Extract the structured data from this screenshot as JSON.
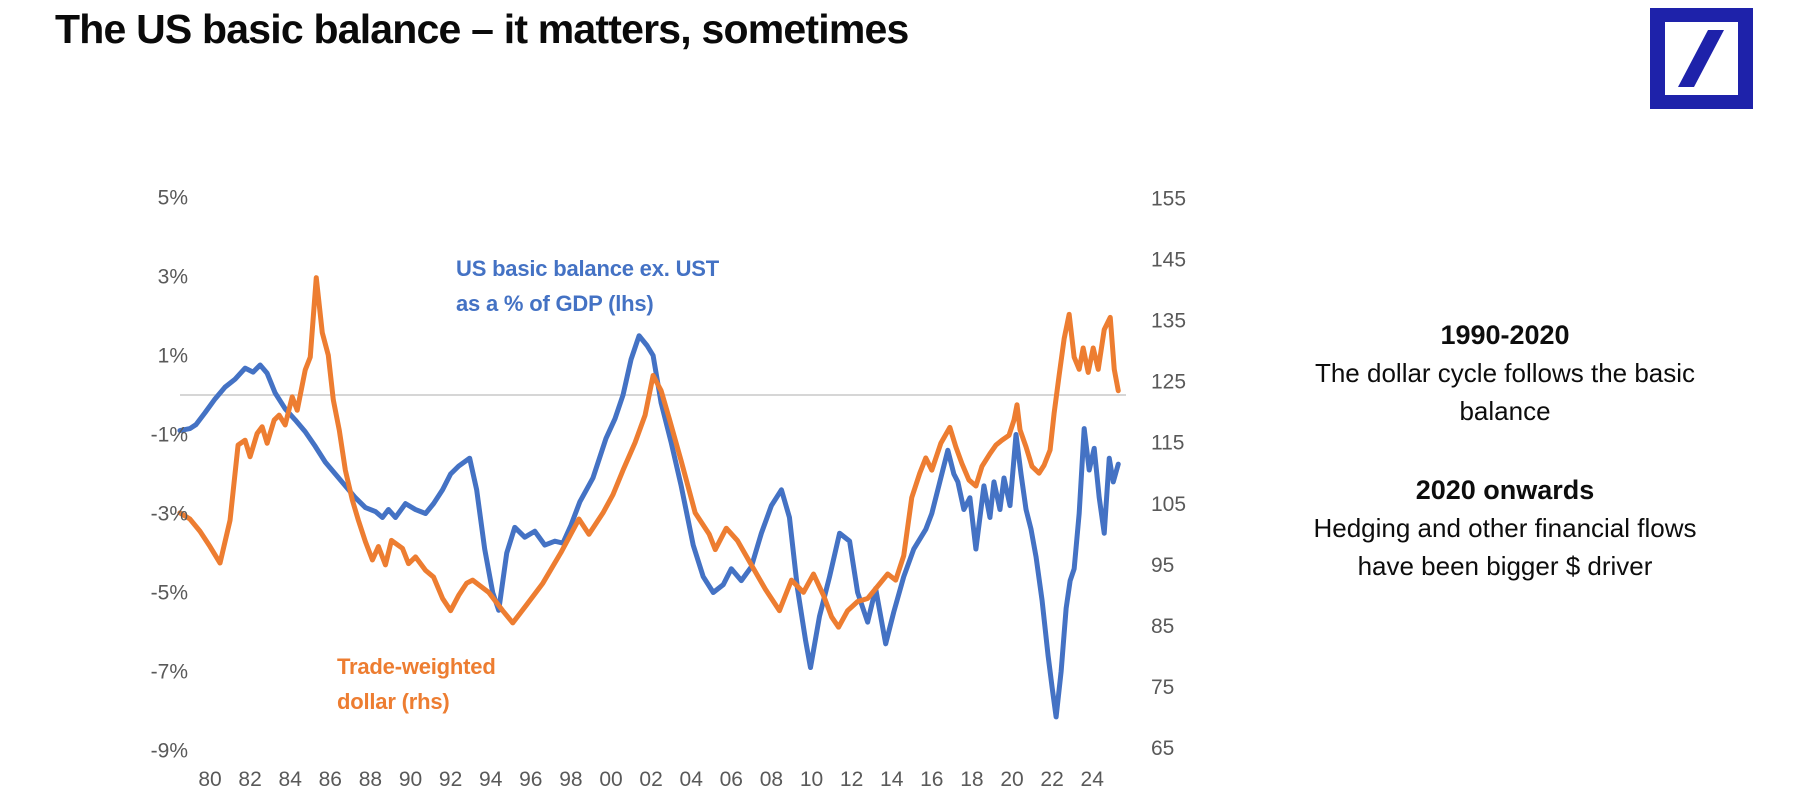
{
  "title": "The US basic balance – it matters, sometimes",
  "logo": {
    "label": "Deutsche Bank",
    "color": "#1E22AA"
  },
  "series_labels": {
    "basic_balance": {
      "line1": "US basic balance ex. UST",
      "line2": "as a % of GDP (lhs)"
    },
    "dollar": {
      "line1": "Trade-weighted",
      "line2": "dollar (rhs)"
    }
  },
  "annotations": [
    {
      "heading": "1990-2020",
      "body": "The dollar cycle follows the basic balance"
    },
    {
      "heading": "2020 onwards",
      "body": "Hedging and other financial flows have been bigger $ driver"
    }
  ],
  "chart_data": {
    "type": "line",
    "grid": "single zero gridline only",
    "legend_position": "labels placed inside plot next to lines",
    "zero_line_color": "#c9c9c9",
    "axis_text_color": "#595959",
    "left_axis": {
      "range": [
        -9,
        5
      ],
      "ticks": [
        {
          "label": "5%",
          "v": 5
        },
        {
          "label": "3%",
          "v": 3
        },
        {
          "label": "1%",
          "v": 1
        },
        {
          "label": "-1%",
          "v": -1
        },
        {
          "label": "-3%",
          "v": -3
        },
        {
          "label": "-5%",
          "v": -5
        },
        {
          "label": "-7%",
          "v": -7
        },
        {
          "label": "-9%",
          "v": -9
        }
      ]
    },
    "right_axis": {
      "range": [
        65,
        155
      ],
      "ticks": [
        {
          "label": "155",
          "v": 155
        },
        {
          "label": "145",
          "v": 145
        },
        {
          "label": "135",
          "v": 135
        },
        {
          "label": "125",
          "v": 125
        },
        {
          "label": "115",
          "v": 115
        },
        {
          "label": "105",
          "v": 105
        },
        {
          "label": "95",
          "v": 95
        },
        {
          "label": "85",
          "v": 85
        },
        {
          "label": "75",
          "v": 75
        },
        {
          "label": "65",
          "v": 65
        }
      ]
    },
    "x_axis": {
      "range_years": [
        1978.5,
        2025.4
      ],
      "ticks": [
        {
          "label": "80",
          "year": 1980
        },
        {
          "label": "82",
          "year": 1982
        },
        {
          "label": "84",
          "year": 1984
        },
        {
          "label": "86",
          "year": 1986
        },
        {
          "label": "88",
          "year": 1988
        },
        {
          "label": "90",
          "year": 1990
        },
        {
          "label": "92",
          "year": 1992
        },
        {
          "label": "94",
          "year": 1994
        },
        {
          "label": "96",
          "year": 1996
        },
        {
          "label": "98",
          "year": 1998
        },
        {
          "label": "00",
          "year": 2000
        },
        {
          "label": "02",
          "year": 2002
        },
        {
          "label": "04",
          "year": 2004
        },
        {
          "label": "06",
          "year": 2006
        },
        {
          "label": "08",
          "year": 2008
        },
        {
          "label": "10",
          "year": 2010
        },
        {
          "label": "12",
          "year": 2012
        },
        {
          "label": "14",
          "year": 2014
        },
        {
          "label": "16",
          "year": 2016
        },
        {
          "label": "18",
          "year": 2018
        },
        {
          "label": "20",
          "year": 2020
        },
        {
          "label": "22",
          "year": 2022
        },
        {
          "label": "24",
          "year": 2024
        }
      ]
    },
    "series": [
      {
        "name": "US basic balance ex. UST as a % of GDP (lhs)",
        "axis": "left",
        "color": "#4472C4",
        "unit": "% of GDP",
        "points": [
          [
            1978.5,
            -0.9
          ],
          [
            1979.0,
            -0.85
          ],
          [
            1979.3,
            -0.75
          ],
          [
            1979.75,
            -0.45
          ],
          [
            1980.25,
            -0.1
          ],
          [
            1980.75,
            0.2
          ],
          [
            1981.25,
            0.4
          ],
          [
            1981.75,
            0.68
          ],
          [
            1982.15,
            0.58
          ],
          [
            1982.5,
            0.76
          ],
          [
            1982.85,
            0.55
          ],
          [
            1983.25,
            0.05
          ],
          [
            1983.75,
            -0.35
          ],
          [
            1984.25,
            -0.63
          ],
          [
            1984.75,
            -0.93
          ],
          [
            1985.25,
            -1.3
          ],
          [
            1985.75,
            -1.7
          ],
          [
            1986.25,
            -2.0
          ],
          [
            1986.75,
            -2.3
          ],
          [
            1987.25,
            -2.6
          ],
          [
            1987.75,
            -2.85
          ],
          [
            1988.25,
            -2.95
          ],
          [
            1988.6,
            -3.1
          ],
          [
            1988.9,
            -2.9
          ],
          [
            1989.25,
            -3.1
          ],
          [
            1989.75,
            -2.75
          ],
          [
            1990.25,
            -2.9
          ],
          [
            1990.75,
            -3.0
          ],
          [
            1991.15,
            -2.75
          ],
          [
            1991.6,
            -2.4
          ],
          [
            1992.0,
            -2.0
          ],
          [
            1992.4,
            -1.8
          ],
          [
            1992.95,
            -1.6
          ],
          [
            1993.3,
            -2.4
          ],
          [
            1993.7,
            -3.9
          ],
          [
            1994.1,
            -5.0
          ],
          [
            1994.4,
            -5.45
          ],
          [
            1994.8,
            -4.0
          ],
          [
            1995.2,
            -3.35
          ],
          [
            1995.7,
            -3.6
          ],
          [
            1996.2,
            -3.45
          ],
          [
            1996.7,
            -3.8
          ],
          [
            1997.2,
            -3.7
          ],
          [
            1997.6,
            -3.75
          ],
          [
            1998.0,
            -3.3
          ],
          [
            1998.45,
            -2.7
          ],
          [
            1999.1,
            -2.1
          ],
          [
            1999.75,
            -1.1
          ],
          [
            2000.2,
            -0.6
          ],
          [
            2000.6,
            0.0
          ],
          [
            2001.0,
            0.9
          ],
          [
            2001.4,
            1.5
          ],
          [
            2001.8,
            1.25
          ],
          [
            2002.1,
            1.0
          ],
          [
            2002.5,
            -0.2
          ],
          [
            2003.0,
            -1.2
          ],
          [
            2003.5,
            -2.3
          ],
          [
            2004.1,
            -3.8
          ],
          [
            2004.6,
            -4.6
          ],
          [
            2005.1,
            -5.0
          ],
          [
            2005.6,
            -4.8
          ],
          [
            2006.0,
            -4.4
          ],
          [
            2006.5,
            -4.7
          ],
          [
            2007.0,
            -4.35
          ],
          [
            2007.5,
            -3.5
          ],
          [
            2008.0,
            -2.8
          ],
          [
            2008.5,
            -2.4
          ],
          [
            2008.9,
            -3.1
          ],
          [
            2009.3,
            -4.9
          ],
          [
            2009.7,
            -6.2
          ],
          [
            2009.95,
            -6.9
          ],
          [
            2010.4,
            -5.6
          ],
          [
            2010.9,
            -4.6
          ],
          [
            2011.4,
            -3.5
          ],
          [
            2011.9,
            -3.7
          ],
          [
            2012.3,
            -5.0
          ],
          [
            2012.8,
            -5.75
          ],
          [
            2013.2,
            -4.9
          ],
          [
            2013.7,
            -6.3
          ],
          [
            2014.1,
            -5.5
          ],
          [
            2014.6,
            -4.6
          ],
          [
            2015.1,
            -3.9
          ],
          [
            2015.7,
            -3.4
          ],
          [
            2016.0,
            -3.0
          ],
          [
            2016.4,
            -2.2
          ],
          [
            2016.8,
            -1.4
          ],
          [
            2017.1,
            -2.0
          ],
          [
            2017.3,
            -2.2
          ],
          [
            2017.6,
            -2.9
          ],
          [
            2017.9,
            -2.6
          ],
          [
            2018.2,
            -3.9
          ],
          [
            2018.6,
            -2.3
          ],
          [
            2018.9,
            -3.1
          ],
          [
            2019.1,
            -2.2
          ],
          [
            2019.4,
            -2.9
          ],
          [
            2019.6,
            -2.1
          ],
          [
            2019.9,
            -2.8
          ],
          [
            2020.2,
            -1.0
          ],
          [
            2020.45,
            -2.0
          ],
          [
            2020.7,
            -2.9
          ],
          [
            2020.95,
            -3.4
          ],
          [
            2021.2,
            -4.1
          ],
          [
            2021.5,
            -5.2
          ],
          [
            2021.8,
            -6.6
          ],
          [
            2022.0,
            -7.4
          ],
          [
            2022.2,
            -8.15
          ],
          [
            2022.45,
            -7.0
          ],
          [
            2022.7,
            -5.4
          ],
          [
            2022.9,
            -4.7
          ],
          [
            2023.1,
            -4.4
          ],
          [
            2023.35,
            -3.0
          ],
          [
            2023.6,
            -0.85
          ],
          [
            2023.85,
            -1.9
          ],
          [
            2024.1,
            -1.35
          ],
          [
            2024.35,
            -2.6
          ],
          [
            2024.6,
            -3.5
          ],
          [
            2024.85,
            -1.6
          ],
          [
            2025.05,
            -2.2
          ],
          [
            2025.3,
            -1.75
          ]
        ]
      },
      {
        "name": "Trade-weighted dollar (rhs)",
        "axis": "right",
        "color": "#ED7D31",
        "unit": "index",
        "points": [
          [
            1978.5,
            103.5
          ],
          [
            1979.0,
            102.5
          ],
          [
            1979.5,
            100.5
          ],
          [
            1980.0,
            98.0
          ],
          [
            1980.5,
            95.3
          ],
          [
            1981.0,
            102.3
          ],
          [
            1981.4,
            114.6
          ],
          [
            1981.75,
            115.4
          ],
          [
            1982.0,
            112.7
          ],
          [
            1982.35,
            116.5
          ],
          [
            1982.6,
            117.6
          ],
          [
            1982.85,
            114.9
          ],
          [
            1983.2,
            118.7
          ],
          [
            1983.45,
            119.5
          ],
          [
            1983.75,
            117.9
          ],
          [
            1984.1,
            122.5
          ],
          [
            1984.35,
            120.3
          ],
          [
            1984.75,
            126.9
          ],
          [
            1985.0,
            129.0
          ],
          [
            1985.3,
            142.0
          ],
          [
            1985.6,
            133.0
          ],
          [
            1985.9,
            129.3
          ],
          [
            1986.15,
            122.0
          ],
          [
            1986.45,
            117.0
          ],
          [
            1986.75,
            110.5
          ],
          [
            1987.1,
            105.6
          ],
          [
            1987.4,
            102.3
          ],
          [
            1987.75,
            98.8
          ],
          [
            1988.1,
            95.8
          ],
          [
            1988.4,
            98.0
          ],
          [
            1988.75,
            95.0
          ],
          [
            1989.05,
            99.0
          ],
          [
            1989.6,
            97.7
          ],
          [
            1989.9,
            95.2
          ],
          [
            1990.25,
            96.3
          ],
          [
            1990.75,
            94.1
          ],
          [
            1991.15,
            93.0
          ],
          [
            1991.6,
            89.5
          ],
          [
            1992.0,
            87.5
          ],
          [
            1992.4,
            90.0
          ],
          [
            1992.8,
            92.0
          ],
          [
            1993.1,
            92.5
          ],
          [
            1993.5,
            91.5
          ],
          [
            1993.9,
            90.5
          ],
          [
            1994.6,
            87.5
          ],
          [
            1995.1,
            85.5
          ],
          [
            1995.8,
            88.5
          ],
          [
            1996.6,
            92.0
          ],
          [
            1997.5,
            97.0
          ],
          [
            1998.4,
            102.5
          ],
          [
            1998.9,
            100.0
          ],
          [
            1999.6,
            103.5
          ],
          [
            2000.1,
            106.5
          ],
          [
            2000.6,
            110.5
          ],
          [
            2001.2,
            115.0
          ],
          [
            2001.7,
            119.5
          ],
          [
            2002.1,
            126.0
          ],
          [
            2002.5,
            123.5
          ],
          [
            2002.9,
            119.0
          ],
          [
            2003.5,
            112.0
          ],
          [
            2004.2,
            103.5
          ],
          [
            2004.9,
            100.0
          ],
          [
            2005.2,
            97.5
          ],
          [
            2005.75,
            101.0
          ],
          [
            2006.3,
            99.0
          ],
          [
            2007.0,
            95.0
          ],
          [
            2007.7,
            91.0
          ],
          [
            2008.4,
            87.5
          ],
          [
            2009.0,
            92.5
          ],
          [
            2009.6,
            90.5
          ],
          [
            2010.1,
            93.5
          ],
          [
            2010.6,
            90.0
          ],
          [
            2011.0,
            86.5
          ],
          [
            2011.35,
            84.8
          ],
          [
            2011.8,
            87.5
          ],
          [
            2012.3,
            89.0
          ],
          [
            2012.8,
            89.5
          ],
          [
            2013.3,
            91.5
          ],
          [
            2013.8,
            93.5
          ],
          [
            2014.2,
            92.5
          ],
          [
            2014.6,
            96.5
          ],
          [
            2015.0,
            106.0
          ],
          [
            2015.4,
            110.0
          ],
          [
            2015.7,
            112.5
          ],
          [
            2016.0,
            110.5
          ],
          [
            2016.45,
            114.9
          ],
          [
            2016.9,
            117.5
          ],
          [
            2017.2,
            114.3
          ],
          [
            2017.5,
            111.6
          ],
          [
            2017.85,
            108.9
          ],
          [
            2018.2,
            107.9
          ],
          [
            2018.5,
            111.1
          ],
          [
            2018.9,
            113.2
          ],
          [
            2019.2,
            114.6
          ],
          [
            2019.5,
            115.4
          ],
          [
            2019.85,
            116.2
          ],
          [
            2020.1,
            118.7
          ],
          [
            2020.25,
            121.2
          ],
          [
            2020.4,
            117.1
          ],
          [
            2020.7,
            114.3
          ],
          [
            2021.0,
            111.1
          ],
          [
            2021.35,
            110.0
          ],
          [
            2021.6,
            111.3
          ],
          [
            2021.9,
            113.8
          ],
          [
            2022.1,
            119.8
          ],
          [
            2022.35,
            126.0
          ],
          [
            2022.6,
            132.0
          ],
          [
            2022.85,
            136.0
          ],
          [
            2023.1,
            129.0
          ],
          [
            2023.35,
            127.0
          ],
          [
            2023.55,
            130.5
          ],
          [
            2023.8,
            126.5
          ],
          [
            2024.05,
            130.5
          ],
          [
            2024.3,
            127.0
          ],
          [
            2024.6,
            133.5
          ],
          [
            2024.9,
            135.5
          ],
          [
            2025.1,
            127.0
          ],
          [
            2025.3,
            123.5
          ]
        ]
      }
    ]
  }
}
